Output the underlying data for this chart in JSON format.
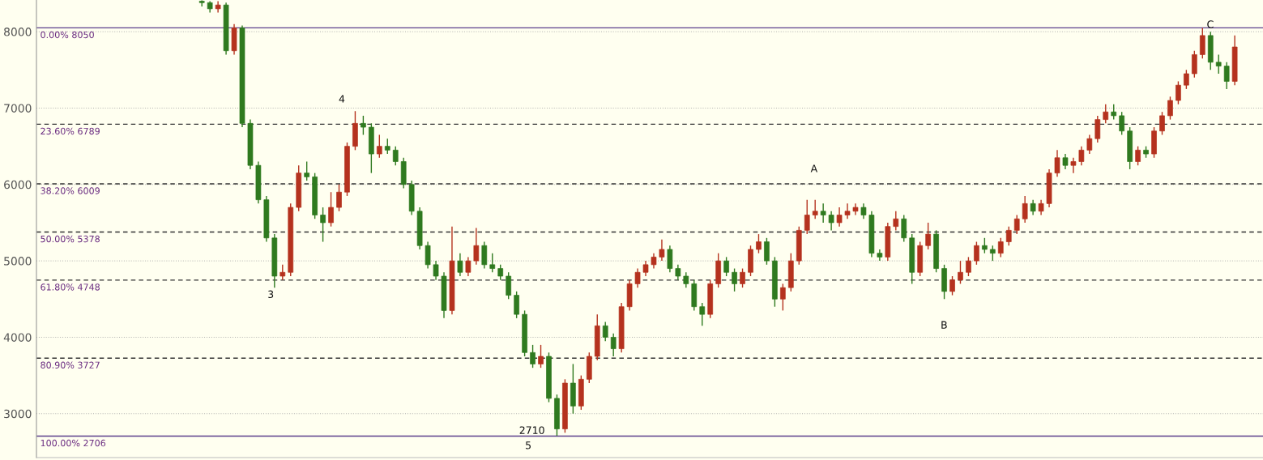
{
  "chart_data": {
    "type": "candlestick",
    "categories": [
      null,
      null,
      null,
      null,
      null,
      null,
      null,
      null,
      null,
      null,
      null,
      null,
      null,
      null,
      null,
      null,
      null,
      null,
      null,
      null,
      null,
      null,
      null,
      null,
      null,
      null,
      null,
      null,
      null,
      null,
      null,
      null,
      null,
      null,
      null,
      null,
      null,
      null,
      null,
      null,
      null,
      null,
      null,
      null,
      null,
      null,
      null,
      null,
      null,
      null,
      null,
      null,
      null,
      null,
      null,
      null,
      null,
      null,
      null,
      null,
      null,
      null,
      null,
      null,
      null,
      null,
      null,
      null,
      null,
      null,
      null,
      null,
      null,
      null,
      null,
      null,
      null,
      null,
      null,
      null,
      null,
      null,
      null,
      null,
      null,
      null,
      null,
      null,
      null,
      null,
      null,
      null,
      null,
      null,
      null,
      null,
      null,
      null,
      null,
      null,
      null,
      null,
      null,
      null,
      null,
      null,
      null,
      null,
      null,
      null,
      null,
      null,
      null,
      null,
      null,
      null,
      null,
      null,
      null,
      null,
      null,
      null,
      null,
      null,
      null,
      null,
      null,
      null,
      null,
      null,
      null,
      null,
      null,
      null,
      null,
      null,
      null,
      null,
      null,
      null,
      null,
      null,
      null,
      null,
      null,
      null,
      null,
      null,
      null,
      null,
      null,
      null
    ],
    "ohlc": [
      null,
      null,
      null,
      null,
      null,
      null,
      null,
      null,
      null,
      null,
      null,
      null,
      null,
      null,
      null,
      null,
      null,
      null,
      null,
      null,
      [
        8400,
        8410,
        8330,
        8380
      ],
      [
        8380,
        8400,
        8250,
        8300
      ],
      [
        8300,
        8400,
        8250,
        8350
      ],
      [
        8350,
        8380,
        7700,
        7750
      ],
      [
        7750,
        8100,
        7700,
        8050
      ],
      [
        8050,
        8080,
        6750,
        6800
      ],
      [
        6800,
        6850,
        6200,
        6250
      ],
      [
        6250,
        6300,
        5750,
        5800
      ],
      [
        5800,
        5850,
        5250,
        5300
      ],
      [
        5300,
        5350,
        4650,
        4800
      ],
      [
        4800,
        4950,
        4750,
        4850
      ],
      [
        4850,
        5750,
        4800,
        5700
      ],
      [
        5700,
        6250,
        5650,
        6150
      ],
      [
        6150,
        6300,
        6050,
        6100
      ],
      [
        6100,
        6150,
        5550,
        5600
      ],
      [
        5600,
        5700,
        5250,
        5500
      ],
      [
        5500,
        5900,
        5450,
        5700
      ],
      [
        5700,
        6000,
        5650,
        5900
      ],
      [
        5900,
        6550,
        5850,
        6500
      ],
      [
        6500,
        6960,
        6450,
        6800
      ],
      [
        6800,
        6900,
        6650,
        6750
      ],
      [
        6750,
        6800,
        6150,
        6400
      ],
      [
        6400,
        6650,
        6350,
        6500
      ],
      [
        6500,
        6600,
        6400,
        6450
      ],
      [
        6450,
        6500,
        6250,
        6300
      ],
      [
        6300,
        6350,
        5950,
        6000
      ],
      [
        6000,
        6050,
        5600,
        5650
      ],
      [
        5650,
        5700,
        5150,
        5200
      ],
      [
        5200,
        5250,
        4900,
        4950
      ],
      [
        4950,
        5000,
        4750,
        4800
      ],
      [
        4800,
        4850,
        4250,
        4350
      ],
      [
        4350,
        5450,
        4300,
        5000
      ],
      [
        5000,
        5100,
        4800,
        4850
      ],
      [
        4850,
        5050,
        4800,
        5000
      ],
      [
        5000,
        5430,
        4950,
        5200
      ],
      [
        5200,
        5250,
        4900,
        4950
      ],
      [
        4950,
        5100,
        4850,
        4900
      ],
      [
        4900,
        4950,
        4750,
        4800
      ],
      [
        4800,
        4850,
        4500,
        4550
      ],
      [
        4550,
        4600,
        4250,
        4300
      ],
      [
        4300,
        4350,
        3750,
        3800
      ],
      [
        3800,
        3900,
        3600,
        3650
      ],
      [
        3650,
        3900,
        3600,
        3750
      ],
      [
        3750,
        3800,
        3150,
        3200
      ],
      [
        3200,
        3250,
        2710,
        2800
      ],
      [
        2800,
        3450,
        2750,
        3400
      ],
      [
        3400,
        3650,
        3000,
        3100
      ],
      [
        3100,
        3500,
        3050,
        3450
      ],
      [
        3450,
        3800,
        3400,
        3750
      ],
      [
        3750,
        4300,
        3700,
        4150
      ],
      [
        4150,
        4200,
        3950,
        4000
      ],
      [
        4000,
        4050,
        3750,
        3850
      ],
      [
        3850,
        4450,
        3800,
        4400
      ],
      [
        4400,
        4750,
        4350,
        4700
      ],
      [
        4700,
        4900,
        4650,
        4850
      ],
      [
        4850,
        5000,
        4800,
        4950
      ],
      [
        4950,
        5100,
        4900,
        5050
      ],
      [
        5050,
        5280,
        5000,
        5150
      ],
      [
        5150,
        5200,
        4850,
        4900
      ],
      [
        4900,
        4950,
        4750,
        4800
      ],
      [
        4800,
        4850,
        4650,
        4700
      ],
      [
        4700,
        4750,
        4350,
        4400
      ],
      [
        4400,
        4450,
        4150,
        4300
      ],
      [
        4300,
        4750,
        4250,
        4700
      ],
      [
        4700,
        5100,
        4650,
        5000
      ],
      [
        5000,
        5050,
        4800,
        4850
      ],
      [
        4850,
        4900,
        4600,
        4700
      ],
      [
        4700,
        4900,
        4650,
        4850
      ],
      [
        4850,
        5200,
        4800,
        5150
      ],
      [
        5150,
        5350,
        5100,
        5250
      ],
      [
        5250,
        5300,
        4950,
        5000
      ],
      [
        5000,
        5050,
        4400,
        4500
      ],
      [
        4500,
        4700,
        4350,
        4650
      ],
      [
        4650,
        5100,
        4600,
        5000
      ],
      [
        5000,
        5450,
        4950,
        5400
      ],
      [
        5400,
        5800,
        5350,
        5600
      ],
      [
        5600,
        5800,
        5550,
        5650
      ],
      [
        5650,
        5750,
        5500,
        5600
      ],
      [
        5600,
        5650,
        5400,
        5500
      ],
      [
        5500,
        5700,
        5450,
        5600
      ],
      [
        5600,
        5750,
        5550,
        5650
      ],
      [
        5650,
        5750,
        5600,
        5700
      ],
      [
        5700,
        5750,
        5550,
        5600
      ],
      [
        5600,
        5650,
        5050,
        5100
      ],
      [
        5100,
        5150,
        5000,
        5050
      ],
      [
        5050,
        5500,
        5000,
        5450
      ],
      [
        5450,
        5650,
        5400,
        5550
      ],
      [
        5550,
        5600,
        5250,
        5300
      ],
      [
        5300,
        5350,
        4700,
        4850
      ],
      [
        4850,
        5250,
        4800,
        5200
      ],
      [
        5200,
        5500,
        5150,
        5350
      ],
      [
        5350,
        5400,
        4850,
        4900
      ],
      [
        4900,
        4950,
        4500,
        4600
      ],
      [
        4600,
        4800,
        4550,
        4750
      ],
      [
        4750,
        5000,
        4700,
        4850
      ],
      [
        4850,
        5050,
        4800,
        5000
      ],
      [
        5000,
        5250,
        4950,
        5200
      ],
      [
        5200,
        5300,
        5100,
        5150
      ],
      [
        5150,
        5200,
        5000,
        5100
      ],
      [
        5100,
        5300,
        5050,
        5250
      ],
      [
        5250,
        5450,
        5200,
        5400
      ],
      [
        5400,
        5600,
        5350,
        5550
      ],
      [
        5550,
        5850,
        5500,
        5750
      ],
      [
        5750,
        5800,
        5600,
        5650
      ],
      [
        5650,
        5800,
        5600,
        5750
      ],
      [
        5750,
        6200,
        5700,
        6150
      ],
      [
        6150,
        6450,
        6100,
        6350
      ],
      [
        6350,
        6400,
        6200,
        6250
      ],
      [
        6250,
        6350,
        6150,
        6300
      ],
      [
        6300,
        6500,
        6250,
        6450
      ],
      [
        6450,
        6650,
        6400,
        6600
      ],
      [
        6600,
        6900,
        6550,
        6850
      ],
      [
        6850,
        7050,
        6800,
        6950
      ],
      [
        6950,
        7050,
        6850,
        6900
      ],
      [
        6900,
        6950,
        6650,
        6700
      ],
      [
        6700,
        6750,
        6200,
        6300
      ],
      [
        6300,
        6500,
        6250,
        6450
      ],
      [
        6450,
        6500,
        6350,
        6400
      ],
      [
        6400,
        6750,
        6350,
        6700
      ],
      [
        6700,
        6950,
        6650,
        6900
      ],
      [
        6900,
        7150,
        6850,
        7100
      ],
      [
        7100,
        7350,
        7050,
        7300
      ],
      [
        7300,
        7500,
        7250,
        7450
      ],
      [
        7450,
        7750,
        7400,
        7700
      ],
      [
        7700,
        8050,
        7650,
        7950
      ],
      [
        7950,
        8000,
        7500,
        7600
      ],
      [
        7600,
        7700,
        7450,
        7550
      ],
      [
        7550,
        7600,
        7250,
        7350
      ],
      [
        7350,
        7950,
        7300,
        7800
      ],
      null,
      null,
      null
    ],
    "colors": [
      null,
      null,
      null,
      null,
      null,
      null,
      null,
      null,
      null,
      null,
      null,
      null,
      null,
      null,
      null,
      null,
      null,
      null,
      null,
      null,
      "#2f7a1f",
      "#2f7a1f",
      "#b5321e",
      "#2f7a1f",
      "#b5321e",
      "#2f7a1f",
      "#2f7a1f",
      "#2f7a1f",
      "#2f7a1f",
      "#2f7a1f",
      "#b5321e",
      "#b5321e",
      "#b5321e",
      "#2f7a1f",
      "#2f7a1f",
      "#2f7a1f",
      "#b5321e",
      "#b5321e",
      "#b5321e",
      "#b5321e",
      "#2f7a1f",
      "#2f7a1f",
      "#b5321e",
      "#2f7a1f",
      "#2f7a1f",
      "#2f7a1f",
      "#2f7a1f",
      "#2f7a1f",
      "#2f7a1f",
      "#2f7a1f",
      "#2f7a1f",
      "#b5321e",
      "#2f7a1f",
      "#b5321e",
      "#b5321e",
      "#2f7a1f",
      "#2f7a1f",
      "#2f7a1f",
      "#2f7a1f",
      "#2f7a1f",
      "#2f7a1f",
      "#2f7a1f",
      "#b5321e",
      "#2f7a1f",
      "#2f7a1f",
      "#b5321e",
      "#2f7a1f",
      "#b5321e",
      "#b5321e",
      "#b5321e",
      "#2f7a1f",
      "#2f7a1f",
      "#b5321e",
      "#b5321e",
      "#b5321e",
      "#b5321e",
      "#b5321e",
      "#b5321e",
      "#2f7a1f",
      "#2f7a1f",
      "#2f7a1f",
      "#2f7a1f",
      "#2f7a1f",
      "#b5321e",
      "#b5321e",
      "#2f7a1f",
      "#2f7a1f",
      "#b5321e",
      "#b5321e",
      "#b5321e",
      "#2f7a1f",
      "#2f7a1f",
      "#b5321e",
      "#b5321e",
      "#b5321e",
      "#b5321e",
      "#b5321e",
      "#2f7a1f",
      "#2f7a1f",
      "#b5321e",
      "#b5321e",
      "#b5321e",
      "#2f7a1f",
      "#2f7a1f",
      "#2f7a1f",
      "#b5321e",
      "#b5321e",
      "#2f7a1f",
      "#2f7a1f",
      "#b5321e",
      "#b5321e",
      "#2f7a1f",
      "#2f7a1f",
      "#b5321e",
      "#b5321e",
      "#b5321e",
      "#b5321e",
      "#2f7a1f",
      "#2f7a1f",
      "#b5321e",
      "#b5321e",
      "#b5321e",
      "#b5321e",
      "#2f7a1f",
      "#b5321e",
      "#b5321e",
      "#b5321e",
      "#2f7a1f",
      "#b5321e",
      "#b5321e",
      "#b5321e",
      "#b5321e",
      "#b5321e",
      "#2f7a1f",
      "#2f7a1f",
      "#2f7a1f",
      "#b5321e",
      "#2f7a1f",
      "#b5321e",
      "#b5321e",
      "#b5321e",
      "#b5321e",
      "#b5321e",
      "#b5321e",
      "#b5321e",
      "#2f7a1f",
      "#2f7a1f",
      "#2f7a1f",
      "#b5321e",
      null,
      null,
      null
    ],
    "ylim": [
      2425,
      8415
    ],
    "yticks": [
      3000,
      4000,
      5000,
      6000,
      7000,
      8000
    ],
    "grid": "y",
    "ref_lines": [
      {
        "axis": "y",
        "value": 8050,
        "label": "0.00% 8050",
        "color": "#5b3f8c",
        "line_style": "solid"
      },
      {
        "axis": "y",
        "value": 6789,
        "label": "23.60% 6789",
        "color": "#333333",
        "line_style": "dashed"
      },
      {
        "axis": "y",
        "value": 6009,
        "label": "38.20% 6009",
        "color": "#333333",
        "line_style": "dashed"
      },
      {
        "axis": "y",
        "value": 5378,
        "label": "50.00% 5378",
        "color": "#333333",
        "line_style": "dashed"
      },
      {
        "axis": "y",
        "value": 4748,
        "label": "61.80% 4748",
        "color": "#333333",
        "line_style": "dashed"
      },
      {
        "axis": "y",
        "value": 3727,
        "label": "80.90% 3727",
        "color": "#333333",
        "line_style": "dashed"
      },
      {
        "axis": "y",
        "value": 2706,
        "label": "100.00% 2706",
        "color": "#5b3f8c",
        "line_style": "solid"
      }
    ],
    "annotations": [
      "3",
      "4",
      "2710",
      "5",
      "A",
      "B",
      "C"
    ]
  }
}
